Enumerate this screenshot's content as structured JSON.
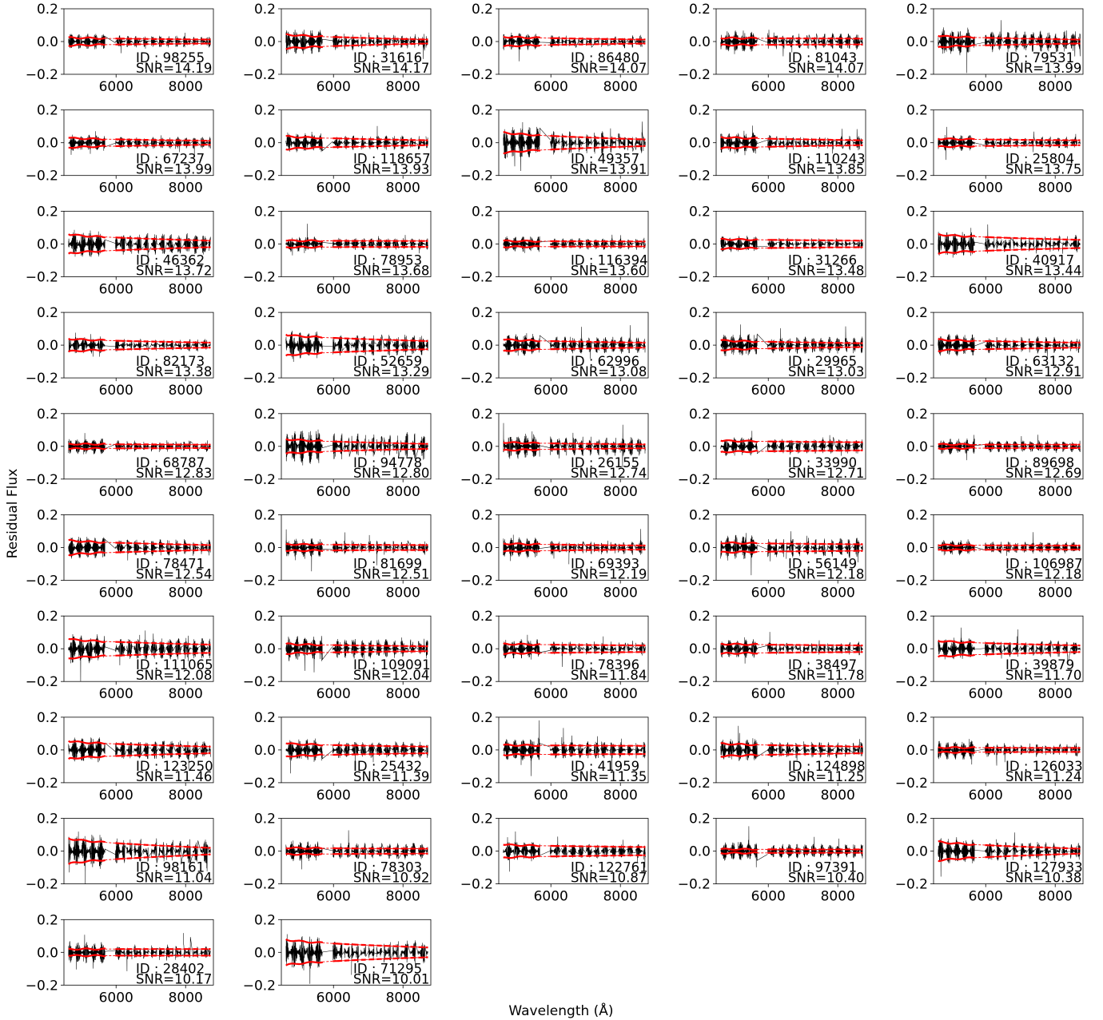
{
  "figure": {
    "xlabel": "Wavelength (Å)",
    "ylabel": "Residual Flux"
  },
  "chart_data": {
    "type": "line",
    "grid": false,
    "layout": {
      "rows": 11,
      "cols": 5
    },
    "xlim": [
      4500,
      8800
    ],
    "ylim": [
      -0.2,
      0.2
    ],
    "x_ticks": [
      6000,
      8000
    ],
    "y_ticks": [
      0.2,
      0.0,
      -0.2
    ],
    "y_tick_labels": [
      "0.2",
      "0.0",
      "−0.2"
    ],
    "x_tick_labels": [
      "6000",
      "8000"
    ],
    "series_colors": {
      "residual": "#000000",
      "envelope": "#ff0000"
    },
    "segments": [
      [
        4630,
        5680
      ],
      [
        5980,
        6250
      ],
      [
        6310,
        6460
      ],
      [
        6520,
        6720
      ],
      [
        6790,
        6930
      ],
      [
        7010,
        7170
      ],
      [
        7240,
        7390
      ],
      [
        7450,
        7640
      ],
      [
        7710,
        7870
      ],
      [
        7940,
        8140
      ],
      [
        8210,
        8360
      ],
      [
        8440,
        8630
      ],
      [
        8660,
        8720
      ]
    ],
    "panels": [
      {
        "id": "98255",
        "snr": "14.19",
        "sigma_blue": 0.025,
        "sigma_red": 0.012,
        "noise": 0.05
      },
      {
        "id": "31616",
        "snr": "14.17",
        "sigma_blue": 0.045,
        "sigma_red": 0.012,
        "noise": 0.08
      },
      {
        "id": "86480",
        "snr": "14.07",
        "sigma_blue": 0.03,
        "sigma_red": 0.012,
        "noise": 0.055
      },
      {
        "id": "81043",
        "snr": "14.07",
        "sigma_blue": 0.022,
        "sigma_red": 0.018,
        "noise": 0.07
      },
      {
        "id": "79531",
        "snr": "13.99",
        "sigma_blue": 0.035,
        "sigma_red": 0.012,
        "noise": 0.09
      },
      {
        "id": "67237",
        "snr": "13.99",
        "sigma_blue": 0.03,
        "sigma_red": 0.012,
        "noise": 0.05
      },
      {
        "id": "118657",
        "snr": "13.93",
        "sigma_blue": 0.04,
        "sigma_red": 0.015,
        "noise": 0.06
      },
      {
        "id": "49357",
        "snr": "13.91",
        "sigma_blue": 0.065,
        "sigma_red": 0.02,
        "noise": 0.1
      },
      {
        "id": "110243",
        "snr": "13.85",
        "sigma_blue": 0.035,
        "sigma_red": 0.015,
        "noise": 0.065
      },
      {
        "id": "25804",
        "snr": "13.75",
        "sigma_blue": 0.025,
        "sigma_red": 0.015,
        "noise": 0.05
      },
      {
        "id": "46362",
        "snr": "13.72",
        "sigma_blue": 0.06,
        "sigma_red": 0.02,
        "noise": 0.09
      },
      {
        "id": "78953",
        "snr": "13.68",
        "sigma_blue": 0.02,
        "sigma_red": 0.018,
        "noise": 0.05
      },
      {
        "id": "116394",
        "snr": "13.60",
        "sigma_blue": 0.018,
        "sigma_red": 0.015,
        "noise": 0.05
      },
      {
        "id": "31266",
        "snr": "13.48",
        "sigma_blue": 0.03,
        "sigma_red": 0.02,
        "noise": 0.05
      },
      {
        "id": "40917",
        "snr": "13.44",
        "sigma_blue": 0.06,
        "sigma_red": 0.025,
        "noise": 0.08
      },
      {
        "id": "82173",
        "snr": "13.38",
        "sigma_blue": 0.04,
        "sigma_red": 0.015,
        "noise": 0.055
      },
      {
        "id": "52659",
        "snr": "13.29",
        "sigma_blue": 0.065,
        "sigma_red": 0.025,
        "noise": 0.09
      },
      {
        "id": "62996",
        "snr": "13.08",
        "sigma_blue": 0.035,
        "sigma_red": 0.015,
        "noise": 0.07
      },
      {
        "id": "29965",
        "snr": "13.03",
        "sigma_blue": 0.03,
        "sigma_red": 0.012,
        "noise": 0.07
      },
      {
        "id": "63132",
        "snr": "12.91",
        "sigma_blue": 0.035,
        "sigma_red": 0.015,
        "noise": 0.07
      },
      {
        "id": "68787",
        "snr": "12.83",
        "sigma_blue": 0.015,
        "sigma_red": 0.01,
        "noise": 0.05
      },
      {
        "id": "94778",
        "snr": "12.80",
        "sigma_blue": 0.045,
        "sigma_red": 0.015,
        "noise": 0.11
      },
      {
        "id": "26155",
        "snr": "12.74",
        "sigma_blue": 0.025,
        "sigma_red": 0.012,
        "noise": 0.08
      },
      {
        "id": "33990",
        "snr": "12.71",
        "sigma_blue": 0.035,
        "sigma_red": 0.025,
        "noise": 0.06
      },
      {
        "id": "89698",
        "snr": "12.69",
        "sigma_blue": 0.012,
        "sigma_red": 0.01,
        "noise": 0.05
      },
      {
        "id": "78471",
        "snr": "12.54",
        "sigma_blue": 0.045,
        "sigma_red": 0.015,
        "noise": 0.07
      },
      {
        "id": "81699",
        "snr": "12.51",
        "sigma_blue": 0.02,
        "sigma_red": 0.015,
        "noise": 0.06
      },
      {
        "id": "69393",
        "snr": "12.19",
        "sigma_blue": 0.025,
        "sigma_red": 0.012,
        "noise": 0.065
      },
      {
        "id": "56149",
        "snr": "12.18",
        "sigma_blue": 0.03,
        "sigma_red": 0.02,
        "noise": 0.08
      },
      {
        "id": "106987",
        "snr": "12.18",
        "sigma_blue": 0.015,
        "sigma_red": 0.012,
        "noise": 0.05
      },
      {
        "id": "111065",
        "snr": "12.08",
        "sigma_blue": 0.06,
        "sigma_red": 0.025,
        "noise": 0.09
      },
      {
        "id": "109091",
        "snr": "12.04",
        "sigma_blue": 0.03,
        "sigma_red": 0.015,
        "noise": 0.08
      },
      {
        "id": "78396",
        "snr": "11.84",
        "sigma_blue": 0.03,
        "sigma_red": 0.02,
        "noise": 0.06
      },
      {
        "id": "38497",
        "snr": "11.78",
        "sigma_blue": 0.03,
        "sigma_red": 0.02,
        "noise": 0.06
      },
      {
        "id": "39879",
        "snr": "11.70",
        "sigma_blue": 0.05,
        "sigma_red": 0.02,
        "noise": 0.07
      },
      {
        "id": "123250",
        "snr": "11.46",
        "sigma_blue": 0.055,
        "sigma_red": 0.02,
        "noise": 0.08
      },
      {
        "id": "25432",
        "snr": "11.39",
        "sigma_blue": 0.04,
        "sigma_red": 0.02,
        "noise": 0.07
      },
      {
        "id": "41959",
        "snr": "11.35",
        "sigma_blue": 0.03,
        "sigma_red": 0.025,
        "noise": 0.07
      },
      {
        "id": "124898",
        "snr": "11.25",
        "sigma_blue": 0.04,
        "sigma_red": 0.02,
        "noise": 0.07
      },
      {
        "id": "126033",
        "snr": "11.24",
        "sigma_blue": 0.015,
        "sigma_red": 0.012,
        "noise": 0.06
      },
      {
        "id": "98161",
        "snr": "11.04",
        "sigma_blue": 0.08,
        "sigma_red": 0.02,
        "noise": 0.11
      },
      {
        "id": "78303",
        "snr": "10.92",
        "sigma_blue": 0.02,
        "sigma_red": 0.015,
        "noise": 0.07
      },
      {
        "id": "122761",
        "snr": "10.87",
        "sigma_blue": 0.04,
        "sigma_red": 0.025,
        "noise": 0.06
      },
      {
        "id": "97391",
        "snr": "10.40",
        "sigma_blue": 0.012,
        "sigma_red": 0.01,
        "noise": 0.06
      },
      {
        "id": "127933",
        "snr": "10.38",
        "sigma_blue": 0.06,
        "sigma_red": 0.015,
        "noise": 0.08
      },
      {
        "id": "28402",
        "snr": "10.17",
        "sigma_blue": 0.02,
        "sigma_red": 0.02,
        "noise": 0.07
      },
      {
        "id": "71295",
        "snr": "10.01",
        "sigma_blue": 0.08,
        "sigma_red": 0.03,
        "noise": 0.1
      }
    ]
  }
}
